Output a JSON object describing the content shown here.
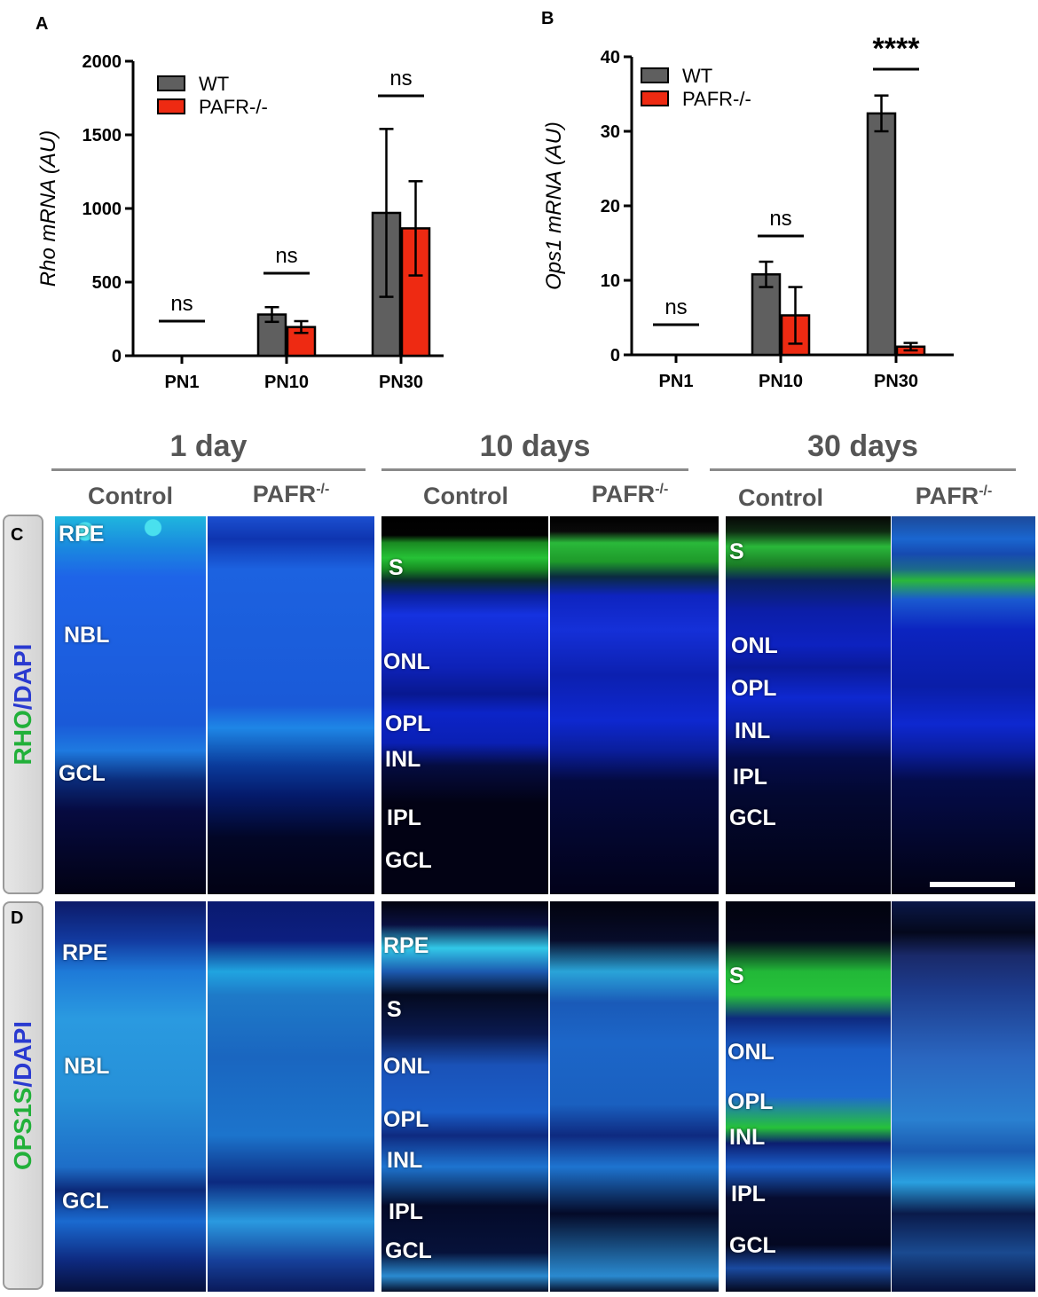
{
  "panel_letters": {
    "a": "A",
    "b": "B",
    "c": "C",
    "d": "D"
  },
  "colors": {
    "wt": "#5f5f5f",
    "pafr": "#ee2a12",
    "green": "#22c03a",
    "blue": "#2a55e0"
  },
  "chart_data": [
    {
      "type": "bar",
      "title": "",
      "xlabel": "",
      "ylabel": "Rho mRNA (AU)",
      "ylim": [
        0,
        2000
      ],
      "yticks": [
        0,
        500,
        1000,
        1500,
        2000
      ],
      "categories": [
        "PN1",
        "PN10",
        "PN30"
      ],
      "series": [
        {
          "name": "WT",
          "values": [
            0,
            280,
            970
          ],
          "errors": [
            0,
            50,
            570
          ]
        },
        {
          "name": "PAFR-/-",
          "values": [
            0,
            195,
            865
          ],
          "errors": [
            0,
            40,
            320
          ]
        }
      ],
      "annotations": [
        "ns",
        "ns",
        "ns"
      ],
      "legend_position": "top-left"
    },
    {
      "type": "bar",
      "title": "",
      "xlabel": "",
      "ylabel": "Ops1 mRNA (AU)",
      "ylim": [
        0,
        40
      ],
      "yticks": [
        0,
        10,
        20,
        30,
        40
      ],
      "categories": [
        "PN1",
        "PN10",
        "PN30"
      ],
      "series": [
        {
          "name": "WT",
          "values": [
            0,
            10.8,
            32.4
          ],
          "errors": [
            0,
            1.7,
            2.4
          ]
        },
        {
          "name": "PAFR-/-",
          "values": [
            0,
            5.3,
            1.1
          ],
          "errors": [
            0,
            3.8,
            0.5
          ]
        }
      ],
      "annotations": [
        "ns",
        "ns",
        "****"
      ],
      "legend_position": "top-left"
    }
  ],
  "micrograph": {
    "groups": [
      {
        "title": "1 day",
        "control": "Control",
        "mutant_base": "PAFR",
        "mutant_sup": "-/-"
      },
      {
        "title": "10 days",
        "control": "Control",
        "mutant_base": "PAFR",
        "mutant_sup": "-/-"
      },
      {
        "title": "30 days",
        "control": "Control",
        "mutant_base": "PAFR",
        "mutant_sup": "-/-"
      }
    ],
    "rows": [
      {
        "marker": "RHO",
        "sep": "/",
        "counter": "DAPI"
      },
      {
        "marker": "OPS1S",
        "sep": "/",
        "counter": "DAPI"
      }
    ],
    "layer_labels": {
      "c1": [
        "RPE",
        "NBL",
        "GCL"
      ],
      "c2": [
        "S",
        "ONL",
        "OPL",
        "INL",
        "IPL",
        "GCL"
      ],
      "c3": [
        "S",
        "ONL",
        "OPL",
        "INL",
        "IPL",
        "GCL"
      ],
      "d1": [
        "RPE",
        "NBL",
        "GCL"
      ],
      "d2": [
        "RPE",
        "S",
        "ONL",
        "OPL",
        "INL",
        "IPL",
        "GCL"
      ],
      "d3": [
        "S",
        "ONL",
        "OPL",
        "INL",
        "IPL",
        "GCL"
      ]
    }
  }
}
